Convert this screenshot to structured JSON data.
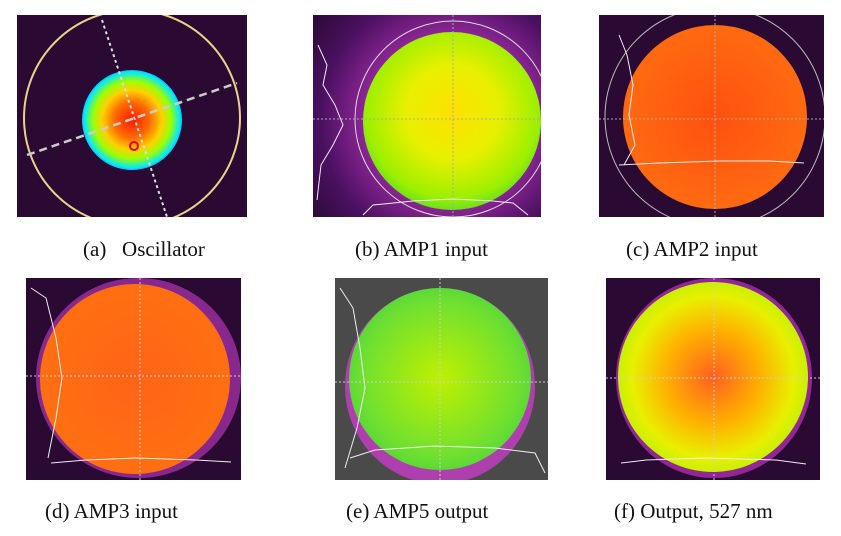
{
  "figure": {
    "panels": [
      {
        "id": "a",
        "caption": "(a)   Oscillator"
      },
      {
        "id": "b",
        "caption": "(b) AMP1 input"
      },
      {
        "id": "c",
        "caption": "(c) AMP2 input"
      },
      {
        "id": "d",
        "caption": "(d) AMP3 input"
      },
      {
        "id": "e",
        "caption": "(e) AMP5 output"
      },
      {
        "id": "f",
        "caption": "(f) Output, 527 nm"
      }
    ],
    "colors": {
      "background_dark": "#2a0a33",
      "background_gray": "#4a4a4a",
      "ring_gold": "#e8d38a"
    }
  }
}
